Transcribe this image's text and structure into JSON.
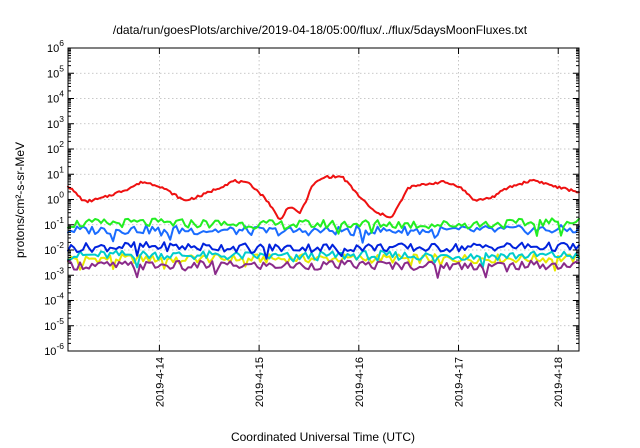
{
  "chart_data": {
    "type": "line",
    "title": "/data/run/goesPlots/archive/2019-04-18/05:00/flux/../flux/5daysMoonFluxes.txt",
    "xlabel": "Coordinated Universal Time (UTC)",
    "ylabel": "protons/cm²-s-sr-MeV",
    "yscale": "log",
    "ylim": [
      1e-06,
      1000000
    ],
    "xlim": [
      "2019-04-13 02:00",
      "2019-04-18 05:00"
    ],
    "grid": true,
    "x_tick_labels": [
      "2019-4-14",
      "2019-4-15",
      "2019-4-16",
      "2019-4-17",
      "2019-4-18"
    ],
    "x_tick_values": [
      "2019-04-14 00:00",
      "2019-04-15 00:00",
      "2019-04-16 00:00",
      "2019-04-17 00:00",
      "2019-04-18 00:00"
    ],
    "y_tick_labels": [
      {
        "base": "10",
        "exp": "6",
        "value": 1000000
      },
      {
        "base": "10",
        "exp": "5",
        "value": 100000
      },
      {
        "base": "10",
        "exp": "4",
        "value": 10000
      },
      {
        "base": "10",
        "exp": "3",
        "value": 1000
      },
      {
        "base": "10",
        "exp": "2",
        "value": 100
      },
      {
        "base": "10",
        "exp": "1",
        "value": 10
      },
      {
        "base": "10",
        "exp": "0",
        "value": 1
      },
      {
        "base": "10",
        "exp": "-1",
        "value": 0.1
      },
      {
        "base": "10",
        "exp": "-2",
        "value": 0.01
      },
      {
        "base": "10",
        "exp": "-3",
        "value": 0.001
      },
      {
        "base": "10",
        "exp": "-4",
        "value": 0.0001
      },
      {
        "base": "10",
        "exp": "-5",
        "value": 1e-05
      },
      {
        "base": "10",
        "exp": "-6",
        "value": 1e-06
      }
    ],
    "series": [
      {
        "color": "#e8e800",
        "x": [
          "2019-04-13 02:00",
          "2019-04-13 18:00",
          "2019-04-14 12:00",
          "2019-04-15 06:00",
          "2019-04-16 00:00",
          "2019-04-16 18:00",
          "2019-04-17 12:00",
          "2019-04-18 05:00"
        ],
        "y": [
          0.0045,
          0.0045,
          0.0046,
          0.0045,
          0.0046,
          0.0045,
          0.0046,
          0.0046
        ]
      },
      {
        "color": "#00cccc",
        "x": [
          "2019-04-13 02:00",
          "2019-04-13 18:00",
          "2019-04-14 12:00",
          "2019-04-15 06:00",
          "2019-04-16 00:00",
          "2019-04-16 18:00",
          "2019-04-17 12:00",
          "2019-04-18 05:00"
        ],
        "y": [
          0.006,
          0.0065,
          0.006,
          0.0055,
          0.0062,
          0.0058,
          0.006,
          0.0062
        ]
      },
      {
        "color": "#1a6cff",
        "x": [
          "2019-04-13 02:00",
          "2019-04-13 18:00",
          "2019-04-14 12:00",
          "2019-04-15 06:00",
          "2019-04-16 00:00",
          "2019-04-16 18:00",
          "2019-04-17 12:00",
          "2019-04-18 05:00"
        ],
        "y": [
          0.06,
          0.065,
          0.06,
          0.055,
          0.06,
          0.058,
          0.062,
          0.065
        ]
      },
      {
        "color": "#0022dd",
        "x": [
          "2019-04-13 02:00",
          "2019-04-13 18:00",
          "2019-04-14 12:00",
          "2019-04-15 06:00",
          "2019-04-16 00:00",
          "2019-04-16 18:00",
          "2019-04-17 12:00",
          "2019-04-18 05:00"
        ],
        "y": [
          0.012,
          0.014,
          0.013,
          0.012,
          0.013,
          0.012,
          0.014,
          0.013
        ]
      },
      {
        "color": "#22ee22",
        "x": [
          "2019-04-13 02:00",
          "2019-04-13 18:00",
          "2019-04-14 12:00",
          "2019-04-15 06:00",
          "2019-04-16 00:00",
          "2019-04-16 18:00",
          "2019-04-17 12:00",
          "2019-04-18 05:00"
        ],
        "y": [
          0.11,
          0.12,
          0.11,
          0.1,
          0.11,
          0.1,
          0.11,
          0.13
        ]
      },
      {
        "color": "#8a2b8a",
        "x": [
          "2019-04-13 02:00",
          "2019-04-13 18:00",
          "2019-04-14 12:00",
          "2019-04-15 06:00",
          "2019-04-16 00:00",
          "2019-04-16 18:00",
          "2019-04-17 12:00",
          "2019-04-18 05:00"
        ],
        "y": [
          0.0025,
          0.0024,
          0.0025,
          0.0024,
          0.0026,
          0.0024,
          0.0025,
          0.0025
        ]
      },
      {
        "color": "#ee1111",
        "x": [
          "2019-04-13 02:00",
          "2019-04-13 06:00",
          "2019-04-13 10:00",
          "2019-04-13 16:00",
          "2019-04-13 20:00",
          "2019-04-14 00:00",
          "2019-04-14 06:00",
          "2019-04-14 10:00",
          "2019-04-14 18:00",
          "2019-04-14 22:00",
          "2019-04-15 02:00",
          "2019-04-15 05:00",
          "2019-04-15 07:00",
          "2019-04-15 10:00",
          "2019-04-15 13:00",
          "2019-04-15 16:00",
          "2019-04-15 20:00",
          "2019-04-16 00:00",
          "2019-04-16 04:00",
          "2019-04-16 08:00",
          "2019-04-16 12:00",
          "2019-04-16 16:00",
          "2019-04-16 20:00",
          "2019-04-17 00:00",
          "2019-04-17 04:00",
          "2019-04-17 08:00",
          "2019-04-17 12:00",
          "2019-04-17 18:00",
          "2019-04-18 00:00",
          "2019-04-18 05:00"
        ],
        "y": [
          3.5,
          0.8,
          1.1,
          2.5,
          5,
          3.5,
          0.9,
          1.4,
          5.5,
          4,
          0.9,
          0.15,
          0.5,
          0.3,
          4,
          8,
          8,
          1.4,
          0.3,
          0.2,
          3,
          4,
          5,
          3.5,
          0.9,
          1.2,
          3,
          6,
          3,
          2
        ]
      }
    ]
  }
}
